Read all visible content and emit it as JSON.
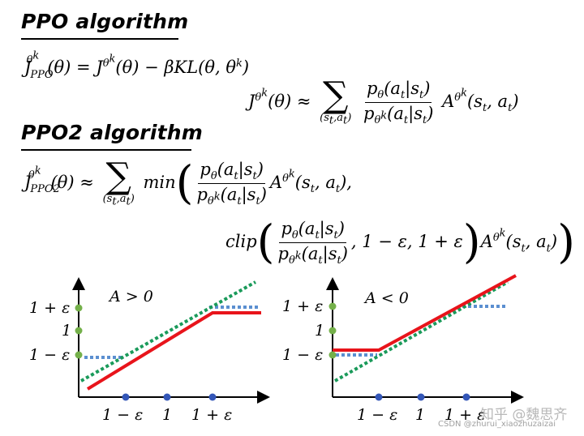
{
  "headings": {
    "ppo": "PPO algorithm",
    "ppo2": "PPO2 algorithm"
  },
  "equations": {
    "ppo_objective": "J_PPO^θ^k(θ) = J^θ^k(θ) − βKL(θ, θ^k)",
    "ppo_surrogate": "J^θ^k(θ) ≈ Σ_(s_t,a_t) p_θ(a_t|s_t) / p_θ^k(a_t|s_t) A^θ^k(s_t, a_t)",
    "ppo2_objective_line1": "J_PPO2^θ^k(θ) ≈ Σ_(s_t,a_t) min( p_θ(a_t|s_t) / p_θ^k(a_t|s_t) A^θ^k(s_t, a_t),",
    "ppo2_objective_line2": "clip( p_θ(a_t|s_t) / p_θ^k(a_t|s_t), 1 − ε, 1 + ε ) A^θ^k(s_t, a_t) )"
  },
  "plots": {
    "left": {
      "condition": "A > 0",
      "y_ticks": [
        "1 + ε",
        "1",
        "1 − ε"
      ],
      "x_ticks": [
        "1 − ε",
        "1",
        "1 + ε"
      ]
    },
    "right": {
      "condition": "A < 0",
      "y_ticks": [
        "1 + ε",
        "1",
        "1 − ε"
      ],
      "x_ticks": [
        "1 − ε",
        "1",
        "1 + ε"
      ]
    }
  },
  "colors": {
    "red_line": "#e8141b",
    "green_dotted": "#1a9a5a",
    "blue_dotted": "#5b8fd0",
    "y_tick_dot": "#74b04a",
    "x_tick_dot": "#3457b8"
  },
  "watermark": {
    "main": "知乎 @魏思齐",
    "sub": "CSDN @zhurui_xiaozhuzaizai"
  }
}
